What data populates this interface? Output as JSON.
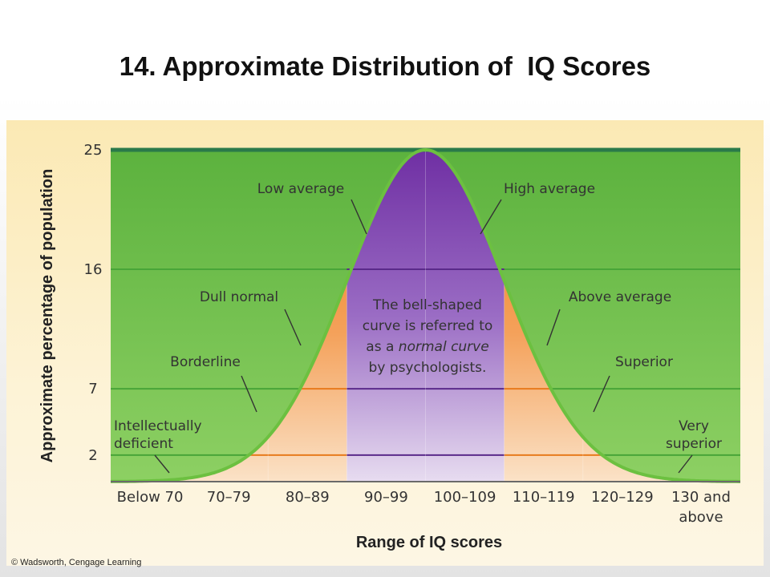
{
  "slide": {
    "title": "14. Approximate Distribution of  IQ Scores",
    "copyright": "© Wadsworth, Cengage Learning"
  },
  "chart_data": {
    "type": "area",
    "xlabel": "Range of IQ scores",
    "ylabel": "Approximate percentage of population",
    "ylim": [
      0,
      25
    ],
    "yticks": [
      2,
      7,
      16,
      25
    ],
    "grid": true,
    "categories": [
      "Below 70",
      "70–79",
      "80–89",
      "90–99",
      "100–109",
      "110–119",
      "120–129",
      [
        "130 and",
        "above"
      ]
    ],
    "category_values": [
      2,
      7,
      16,
      25,
      25,
      16,
      7,
      2
    ],
    "highlight_categories": [
      "90–99",
      "100–109"
    ],
    "annotations": {
      "low_average": [
        "Low average"
      ],
      "high_average": [
        "High average"
      ],
      "dull_normal": [
        "Dull normal"
      ],
      "above_average": [
        "Above average"
      ],
      "borderline": [
        "Borderline"
      ],
      "superior": [
        "Superior"
      ],
      "intellectually_deficient": [
        "Intellectually",
        "deficient"
      ],
      "very_superior": [
        "Very",
        "superior"
      ],
      "note": [
        "The bell-shaped",
        "curve is referred to",
        "as a |normal curve|",
        "by psychologists."
      ]
    },
    "colors": {
      "background_green": "#63b543",
      "curve": "#6cc040",
      "orange": "#f07f1b",
      "purple": "#7a3fa8",
      "gridline_green": "#48a538",
      "gridline_orange": "#e87a1c",
      "gridline_purple": "#5a2a8a",
      "top_line": "#2a7a4a"
    }
  }
}
